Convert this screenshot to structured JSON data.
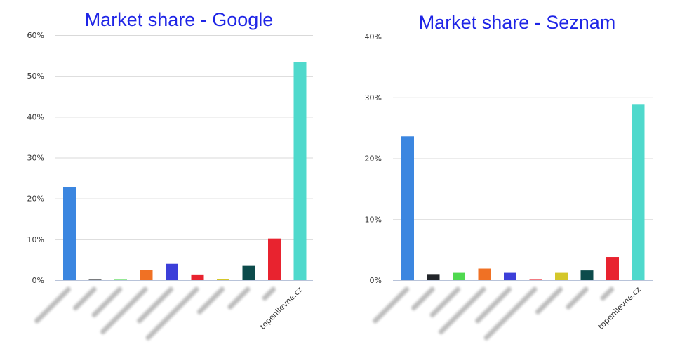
{
  "chart_data": [
    {
      "type": "bar",
      "title": "Market share - Google",
      "categories": [
        "",
        "",
        "",
        "",
        "",
        "",
        "",
        "",
        "",
        "topenilevne.cz"
      ],
      "values": [
        22.8,
        0.1,
        0.1,
        2.5,
        4.0,
        1.4,
        0.3,
        3.5,
        10.2,
        53.3
      ],
      "colors": [
        "#3b86e0",
        "#22252a",
        "#4fd94f",
        "#f07124",
        "#3c3fd9",
        "#e8232f",
        "#d4c72a",
        "#0c4b4b",
        "#e8232f",
        "#4fd9cc"
      ],
      "yticks": [
        "0%",
        "10%",
        "20%",
        "30%",
        "40%",
        "50%",
        "60%"
      ],
      "ylim": [
        0,
        60
      ],
      "grid": true,
      "legend": "none"
    },
    {
      "type": "bar",
      "title": "Market share - Seznam",
      "categories": [
        "",
        "",
        "",
        "",
        "",
        "",
        "",
        "",
        "",
        "topenilevne.cz"
      ],
      "values": [
        23.6,
        1.0,
        1.2,
        1.9,
        1.2,
        0.0,
        1.2,
        1.6,
        3.8,
        28.9
      ],
      "colors": [
        "#3b86e0",
        "#22252a",
        "#4fd94f",
        "#f07124",
        "#3c3fd9",
        "#e8232f",
        "#d4c72a",
        "#0c4b4b",
        "#e8232f",
        "#4fd9cc"
      ],
      "yticks": [
        "0%",
        "10%",
        "20%",
        "30%",
        "40%"
      ],
      "ylim": [
        0,
        40
      ],
      "grid": true,
      "legend": "none"
    }
  ]
}
